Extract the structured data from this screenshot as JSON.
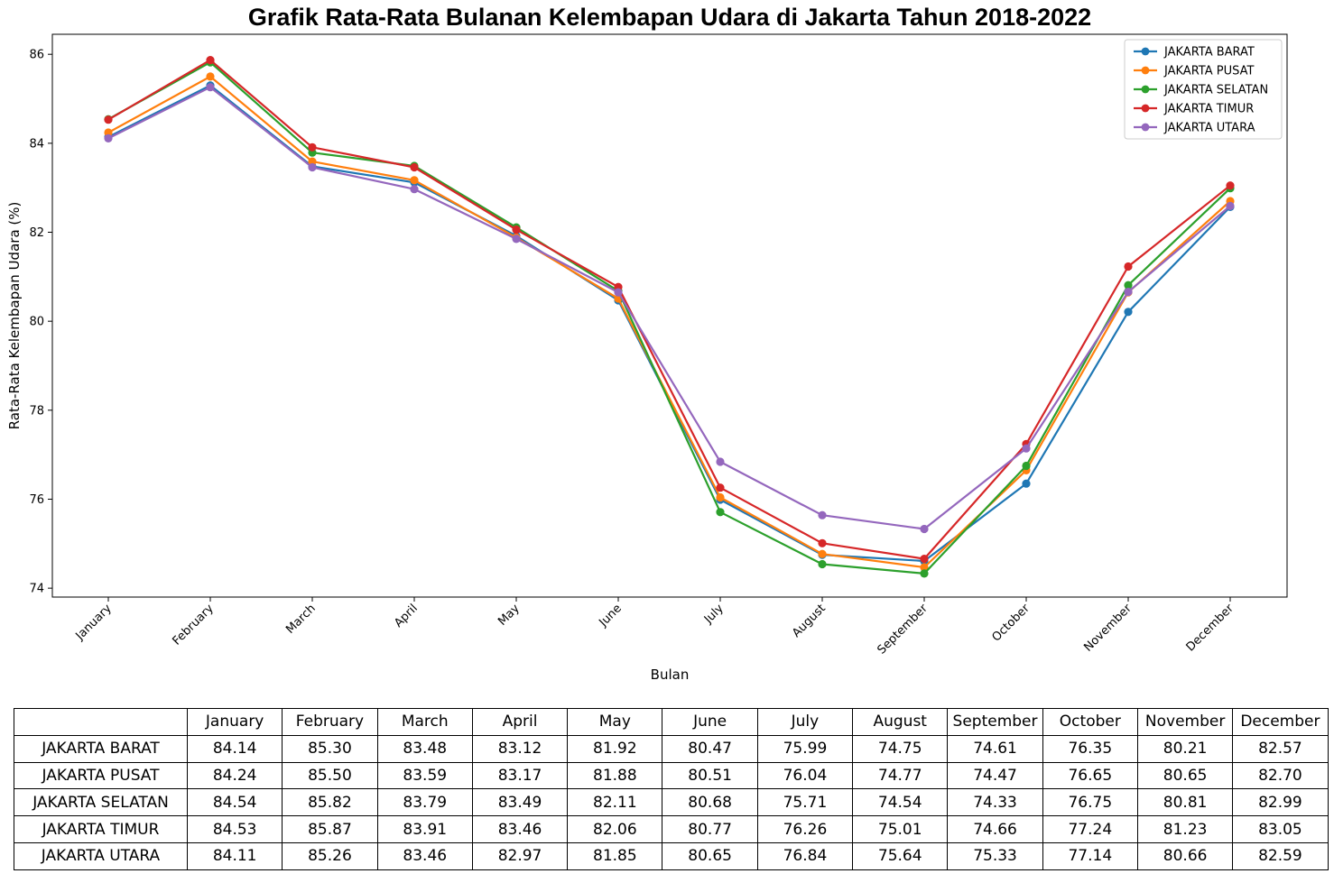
{
  "chart_data": {
    "type": "line",
    "title": "Grafik Rata-Rata Bulanan Kelembapan Udara di Jakarta Tahun 2018-2022",
    "xlabel": "Bulan",
    "ylabel": "Rata-Rata Kelembapan Udara (%)",
    "categories": [
      "January",
      "February",
      "March",
      "April",
      "May",
      "June",
      "July",
      "August",
      "September",
      "October",
      "November",
      "December"
    ],
    "ylim": [
      73.8,
      86.45
    ],
    "yticks": [
      74,
      76,
      78,
      80,
      82,
      84,
      86
    ],
    "grid": false,
    "legend_position": "top-right",
    "series": [
      {
        "name": "JAKARTA BARAT",
        "color": "#1f77b4",
        "values": [
          84.14,
          85.3,
          83.48,
          83.12,
          81.92,
          80.47,
          75.99,
          74.75,
          74.61,
          76.35,
          80.21,
          82.57
        ],
        "display": [
          "84.14",
          "85.30",
          "83.48",
          "83.12",
          "81.92",
          "80.47",
          "75.99",
          "74.75",
          "74.61",
          "76.35",
          "80.21",
          "82.57"
        ]
      },
      {
        "name": "JAKARTA PUSAT",
        "color": "#ff7f0e",
        "values": [
          84.24,
          85.5,
          83.59,
          83.17,
          81.88,
          80.51,
          76.04,
          74.77,
          74.47,
          76.65,
          80.65,
          82.7
        ],
        "display": [
          "84.24",
          "85.50",
          "83.59",
          "83.17",
          "81.88",
          "80.51",
          "76.04",
          "74.77",
          "74.47",
          "76.65",
          "80.65",
          "82.70"
        ]
      },
      {
        "name": "JAKARTA SELATAN",
        "color": "#2ca02c",
        "values": [
          84.54,
          85.82,
          83.79,
          83.49,
          82.11,
          80.68,
          75.71,
          74.54,
          74.33,
          76.75,
          80.81,
          82.99
        ],
        "display": [
          "84.54",
          "85.82",
          "83.79",
          "83.49",
          "82.11",
          "80.68",
          "75.71",
          "74.54",
          "74.33",
          "76.75",
          "80.81",
          "82.99"
        ]
      },
      {
        "name": "JAKARTA TIMUR",
        "color": "#d62728",
        "values": [
          84.53,
          85.87,
          83.91,
          83.46,
          82.06,
          80.77,
          76.26,
          75.01,
          74.66,
          77.24,
          81.23,
          83.05
        ],
        "display": [
          "84.53",
          "85.87",
          "83.91",
          "83.46",
          "82.06",
          "80.77",
          "76.26",
          "75.01",
          "74.66",
          "77.24",
          "81.23",
          "83.05"
        ]
      },
      {
        "name": "JAKARTA UTARA",
        "color": "#9467bd",
        "values": [
          84.11,
          85.26,
          83.46,
          82.97,
          81.85,
          80.65,
          76.84,
          75.64,
          75.33,
          77.14,
          80.66,
          82.59
        ],
        "display": [
          "84.11",
          "85.26",
          "83.46",
          "82.97",
          "81.85",
          "80.65",
          "76.84",
          "75.64",
          "75.33",
          "77.14",
          "80.66",
          "82.59"
        ]
      }
    ]
  }
}
